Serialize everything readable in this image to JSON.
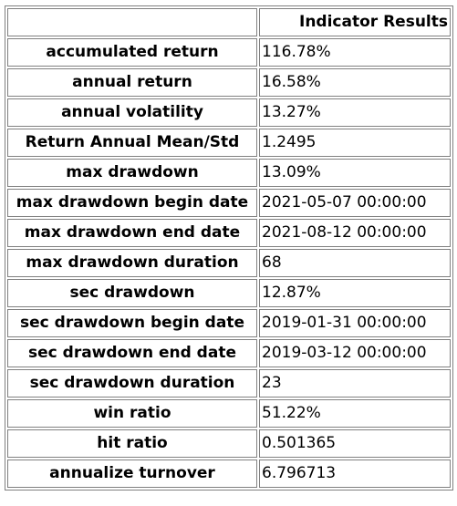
{
  "table": {
    "header": {
      "corner": "",
      "column": "Indicator Results"
    },
    "rows": [
      {
        "label": "accumulated return",
        "value": "116.78%"
      },
      {
        "label": "annual return",
        "value": "16.58%"
      },
      {
        "label": "annual volatility",
        "value": "13.27%"
      },
      {
        "label": "Return Annual Mean/Std",
        "value": "1.2495"
      },
      {
        "label": "max drawdown",
        "value": "13.09%"
      },
      {
        "label": "max drawdown begin date",
        "value": "2021-05-07 00:00:00"
      },
      {
        "label": "max drawdown end date",
        "value": "2021-08-12 00:00:00"
      },
      {
        "label": "max drawdown duration",
        "value": "68"
      },
      {
        "label": "sec drawdown",
        "value": "12.87%"
      },
      {
        "label": "sec drawdown begin date",
        "value": "2019-01-31 00:00:00"
      },
      {
        "label": "sec drawdown end date",
        "value": "2019-03-12 00:00:00"
      },
      {
        "label": "sec drawdown duration",
        "value": "23"
      },
      {
        "label": "win ratio",
        "value": "51.22%"
      },
      {
        "label": "hit ratio",
        "value": "0.501365"
      },
      {
        "label": "annualize turnover",
        "value": "6.796713"
      }
    ]
  }
}
